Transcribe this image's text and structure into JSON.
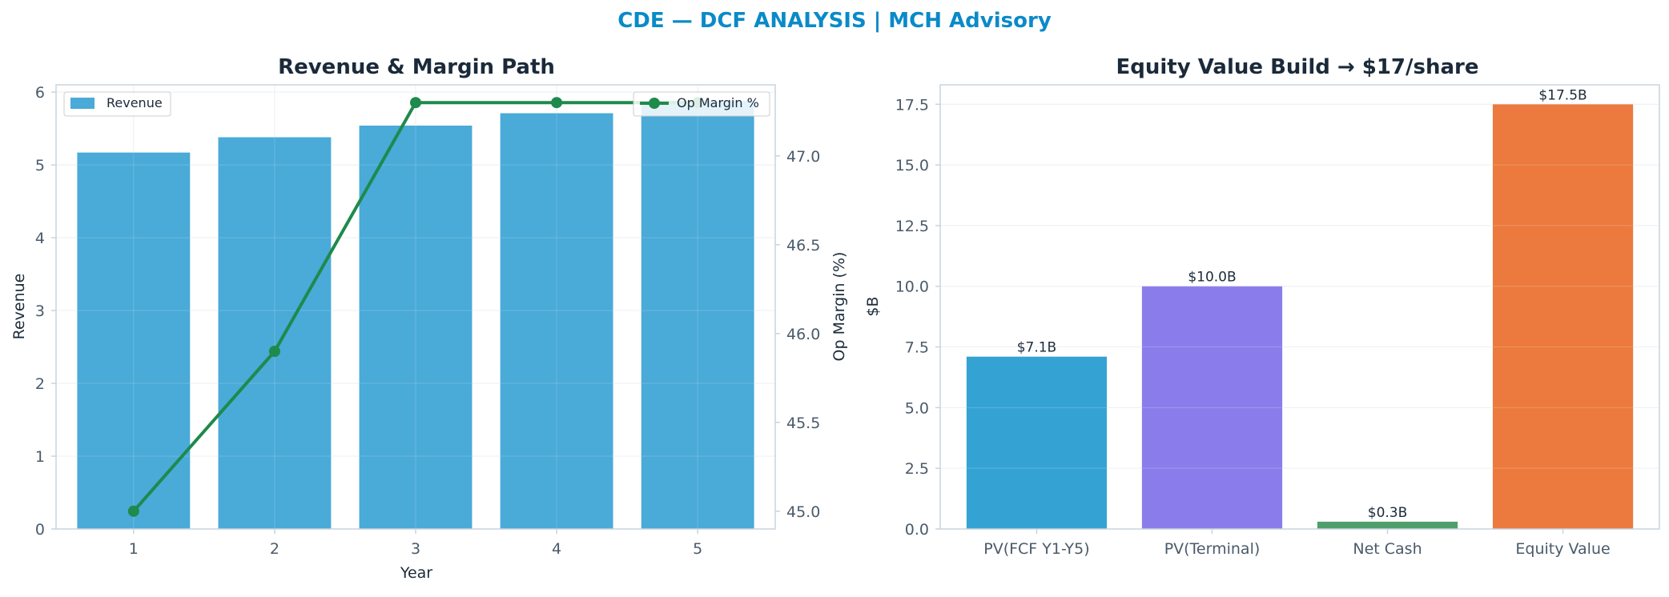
{
  "suptitle": "CDE — DCF ANALYSIS | MCH Advisory",
  "colors": {
    "suptitle": "#0a8ac8",
    "title": "#1b2a3a",
    "tick": "#4a5a6a",
    "axis_label": "#1b2a3a",
    "spine": "#c8d4de",
    "grid": "#e6edf2",
    "revenue_bar": "#4aaad8",
    "margin_line": "#1e8a4c"
  },
  "chart_data": [
    {
      "type": "bar",
      "title": "Revenue & Margin Path",
      "xlabel": "Year",
      "ylabel": "Revenue",
      "y2label": "Op Margin (%)",
      "categories": [
        "1",
        "2",
        "3",
        "4",
        "5"
      ],
      "ylim": [
        0,
        6.1
      ],
      "yticks": [
        0,
        1,
        2,
        3,
        4,
        5,
        6
      ],
      "y2lim": [
        44.9,
        47.4
      ],
      "y2ticks": [
        "45.0",
        "45.5",
        "46.0",
        "46.5",
        "47.0"
      ],
      "series": [
        {
          "name": "Revenue",
          "kind": "bar",
          "axis": "left",
          "values": [
            5.17,
            5.38,
            5.54,
            5.71,
            5.88
          ]
        },
        {
          "name": "Op Margin %",
          "kind": "line",
          "axis": "right",
          "values": [
            45.0,
            45.9,
            47.3,
            47.3,
            47.3
          ]
        }
      ],
      "grid": true,
      "legend": [
        "top-left",
        "top-right"
      ]
    },
    {
      "type": "bar",
      "title": "Equity Value Build → $17/share",
      "xlabel": "",
      "ylabel": "$B",
      "categories": [
        "PV(FCF Y1-Y5)",
        "PV(Terminal)",
        "Net Cash",
        "Equity Value"
      ],
      "values": [
        7.1,
        10.0,
        0.3,
        17.5
      ],
      "data_labels": [
        "$7.1B",
        "$10.0B",
        "$0.3B",
        "$17.5B"
      ],
      "colors": [
        "#34a3d4",
        "#8a7deb",
        "#4e9e6c",
        "#ec7a3e"
      ],
      "ylim": [
        0,
        18.3
      ],
      "yticks": [
        "0.0",
        "2.5",
        "5.0",
        "7.5",
        "10.0",
        "12.5",
        "15.0",
        "17.5"
      ],
      "grid": true
    }
  ]
}
